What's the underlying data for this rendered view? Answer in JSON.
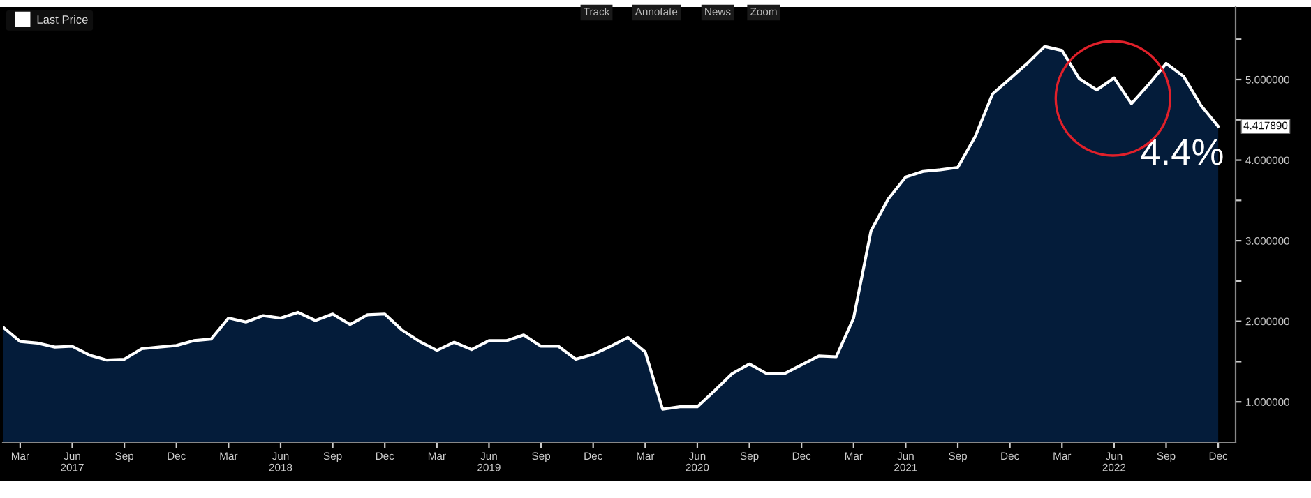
{
  "chart_data": {
    "type": "area",
    "x": [
      "2017-02",
      "2017-03",
      "2017-04",
      "2017-05",
      "2017-06",
      "2017-07",
      "2017-08",
      "2017-09",
      "2017-10",
      "2017-11",
      "2017-12",
      "2018-01",
      "2018-02",
      "2018-03",
      "2018-04",
      "2018-05",
      "2018-06",
      "2018-07",
      "2018-08",
      "2018-09",
      "2018-10",
      "2018-11",
      "2018-12",
      "2019-01",
      "2019-02",
      "2019-03",
      "2019-04",
      "2019-05",
      "2019-06",
      "2019-07",
      "2019-08",
      "2019-09",
      "2019-10",
      "2019-11",
      "2019-12",
      "2020-01",
      "2020-02",
      "2020-03",
      "2020-04",
      "2020-05",
      "2020-06",
      "2020-07",
      "2020-08",
      "2020-09",
      "2020-10",
      "2020-11",
      "2020-12",
      "2021-01",
      "2021-02",
      "2021-03",
      "2021-04",
      "2021-05",
      "2021-06",
      "2021-07",
      "2021-08",
      "2021-09",
      "2021-10",
      "2021-11",
      "2021-12",
      "2022-01",
      "2022-02",
      "2022-03",
      "2022-04",
      "2022-05",
      "2022-06",
      "2022-07",
      "2022-08",
      "2022-09",
      "2022-10",
      "2022-11",
      "2022-12"
    ],
    "series": [
      {
        "name": "Last Price",
        "color": "#ffffff",
        "values": [
          1.93,
          1.75,
          1.73,
          1.68,
          1.69,
          1.58,
          1.52,
          1.53,
          1.66,
          1.68,
          1.7,
          1.76,
          1.78,
          2.04,
          1.99,
          2.07,
          2.04,
          2.11,
          2.01,
          2.09,
          1.96,
          2.08,
          2.09,
          1.89,
          1.75,
          1.64,
          1.74,
          1.65,
          1.76,
          1.76,
          1.83,
          1.69,
          1.69,
          1.53,
          1.59,
          1.69,
          1.8,
          1.62,
          0.91,
          0.94,
          0.94,
          1.14,
          1.35,
          1.47,
          1.35,
          1.35,
          1.46,
          1.57,
          1.56,
          2.04,
          3.12,
          3.52,
          3.79,
          3.86,
          3.88,
          3.91,
          4.29,
          4.82,
          5.01,
          5.2,
          5.41,
          5.36,
          5.01,
          4.87,
          5.02,
          4.7,
          4.94,
          5.2,
          5.04,
          4.68,
          4.41789
        ]
      }
    ],
    "xlim": [
      "2017-02",
      "2023-01"
    ],
    "xticks": [
      {
        "value": "2017-03",
        "label": "Mar"
      },
      {
        "value": "2017-06",
        "label": "Jun\n2017"
      },
      {
        "value": "2017-09",
        "label": "Sep"
      },
      {
        "value": "2017-12",
        "label": "Dec"
      },
      {
        "value": "2018-03",
        "label": "Mar"
      },
      {
        "value": "2018-06",
        "label": "Jun\n2018"
      },
      {
        "value": "2018-09",
        "label": "Sep"
      },
      {
        "value": "2018-12",
        "label": "Dec"
      },
      {
        "value": "2019-03",
        "label": "Mar"
      },
      {
        "value": "2019-06",
        "label": "Jun\n2019"
      },
      {
        "value": "2019-09",
        "label": "Sep"
      },
      {
        "value": "2019-12",
        "label": "Dec"
      },
      {
        "value": "2020-03",
        "label": "Mar"
      },
      {
        "value": "2020-06",
        "label": "Jun\n2020"
      },
      {
        "value": "2020-09",
        "label": "Sep"
      },
      {
        "value": "2020-12",
        "label": "Dec"
      },
      {
        "value": "2021-03",
        "label": "Mar"
      },
      {
        "value": "2021-06",
        "label": "Jun\n2021"
      },
      {
        "value": "2021-09",
        "label": "Sep"
      },
      {
        "value": "2021-12",
        "label": "Dec"
      },
      {
        "value": "2022-03",
        "label": "Mar"
      },
      {
        "value": "2022-06",
        "label": "Jun\n2022"
      },
      {
        "value": "2022-09",
        "label": "Sep"
      },
      {
        "value": "2022-12",
        "label": "Dec"
      }
    ],
    "ylim": [
      0.5,
      5.9
    ],
    "yticks": [
      {
        "value": 1,
        "label": "1.000000"
      },
      {
        "value": 1.5,
        "label": null
      },
      {
        "value": 2,
        "label": "2.000000"
      },
      {
        "value": 2.5,
        "label": null
      },
      {
        "value": 3,
        "label": "3.000000"
      },
      {
        "value": 3.5,
        "label": null
      },
      {
        "value": 4,
        "label": "4.000000"
      },
      {
        "value": 4.5,
        "label": null
      },
      {
        "value": 5,
        "label": "5.000000"
      },
      {
        "value": 5.5,
        "label": null
      }
    ],
    "annotations": [
      "Track",
      "Annotate",
      "News",
      "Zoom",
      {
        "text": "4.417890",
        "x": "2022-12",
        "y": 4.41789
      },
      {
        "text": "4.4%",
        "x": "2022-12",
        "y": 4.41789
      }
    ],
    "legend": "top left",
    "grid": false
  }
}
